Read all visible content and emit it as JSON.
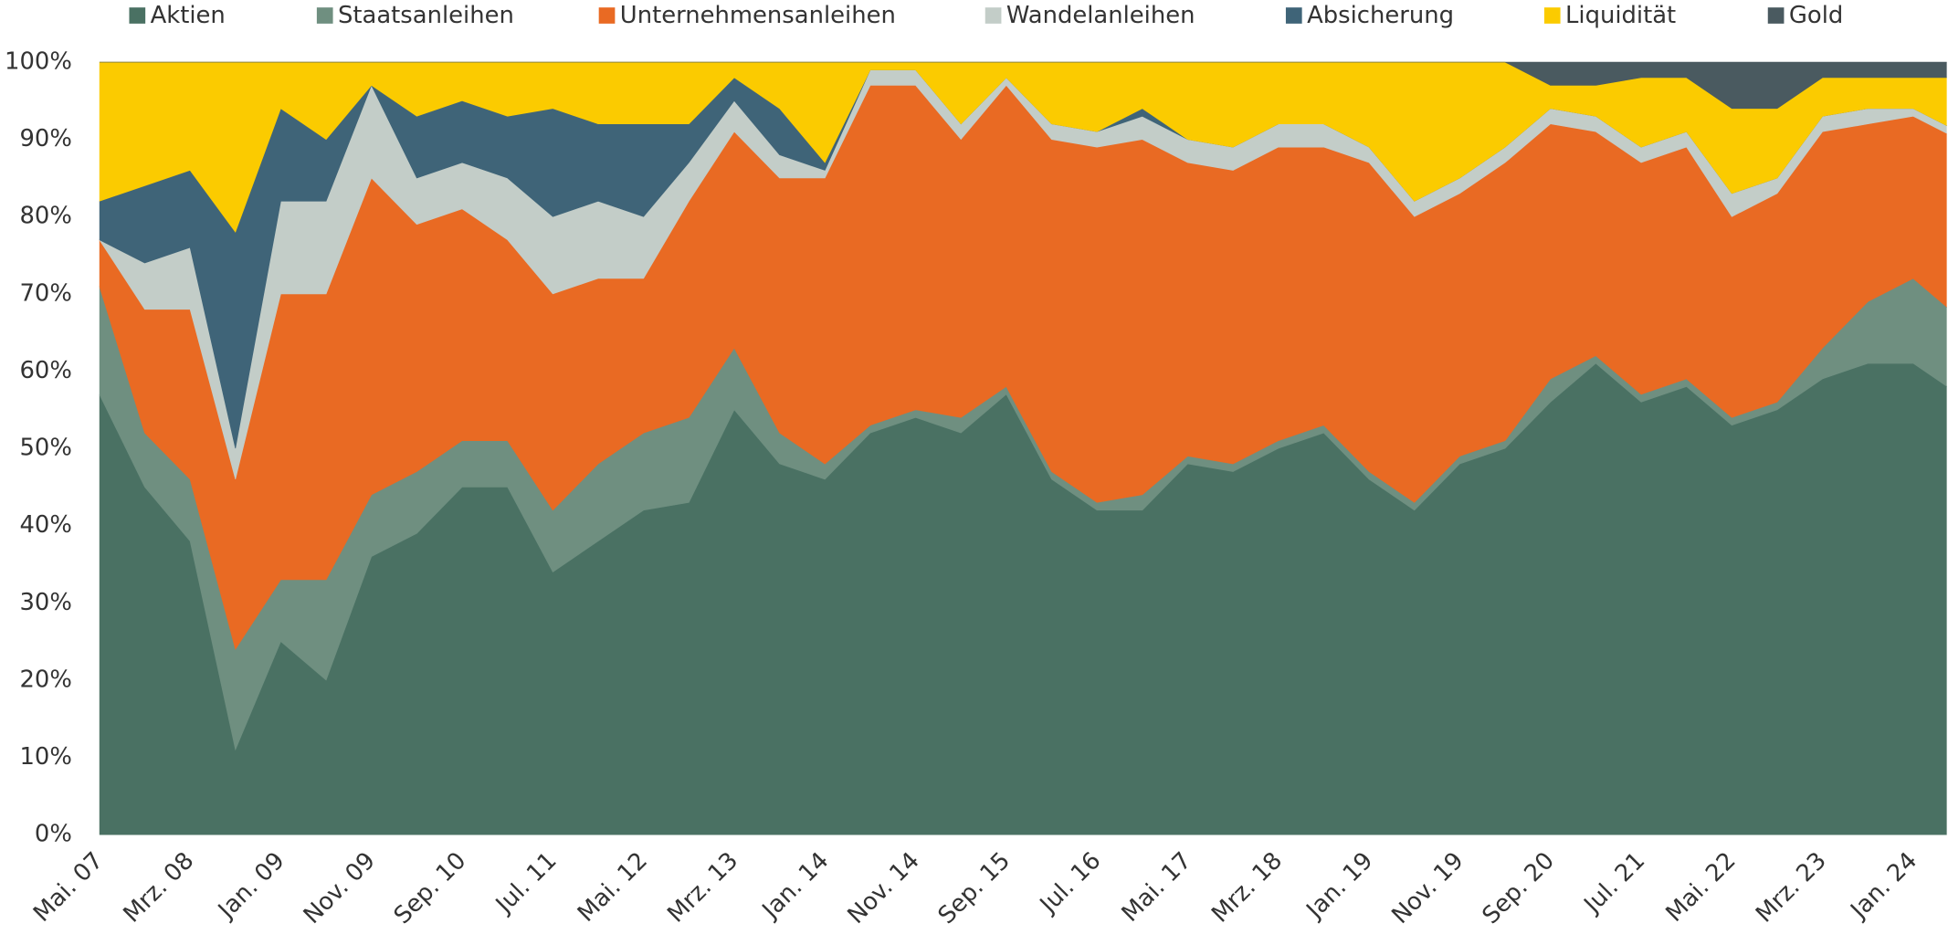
{
  "chart_data": {
    "type": "stacked_area_percent",
    "categories": [
      "Mai. 07",
      null,
      "Mrz. 08",
      null,
      "Jan. 09",
      null,
      "Nov. 09",
      null,
      "Sep. 10",
      null,
      "Jul. 11",
      null,
      "Mai. 12",
      null,
      "Mrz. 13",
      null,
      "Jan. 14",
      null,
      "Nov. 14",
      null,
      "Sep. 15",
      null,
      "Jul. 16",
      null,
      "Mai. 17",
      null,
      "Mrz. 18",
      null,
      "Jan. 19",
      null,
      "Nov. 19",
      null,
      "Sep. 20",
      null,
      "Jul. 21",
      null,
      "Mai. 22",
      null,
      "Mrz. 23",
      null,
      "Jan. 24",
      null
    ],
    "series": [
      {
        "name": "Aktien",
        "color": "#4a7163",
        "values": [
          57,
          45,
          38,
          11,
          25,
          20,
          36,
          39,
          45,
          45,
          34,
          38,
          42,
          43,
          55,
          48,
          46,
          52,
          54,
          52,
          57,
          46,
          42,
          42,
          48,
          47,
          50,
          52,
          46,
          42,
          48,
          50,
          56,
          61,
          56,
          58,
          53,
          55,
          59,
          61,
          61,
          57
        ]
      },
      {
        "name": "Staatsanleihen",
        "color": "#6f8f80",
        "values": [
          14,
          7,
          8,
          13,
          8,
          13,
          8,
          8,
          6,
          6,
          8,
          10,
          10,
          11,
          8,
          4,
          2,
          1,
          1,
          2,
          1,
          1,
          1,
          2,
          1,
          1,
          1,
          1,
          1,
          1,
          1,
          1,
          3,
          1,
          1,
          1,
          1,
          1,
          4,
          8,
          11,
          10
        ]
      },
      {
        "name": "Unternehmensanleihen",
        "color": "#e96a23",
        "values": [
          6,
          16,
          22,
          22,
          37,
          37,
          41,
          32,
          30,
          26,
          28,
          24,
          20,
          28,
          28,
          33,
          37,
          44,
          42,
          36,
          39,
          43,
          46,
          46,
          38,
          38,
          38,
          36,
          40,
          37,
          34,
          36,
          33,
          29,
          30,
          30,
          26,
          27,
          28,
          23,
          21,
          23
        ]
      },
      {
        "name": "Wandelanleihen",
        "color": "#c3cdc8",
        "values": [
          0,
          6,
          8,
          4,
          12,
          12,
          12,
          6,
          6,
          8,
          10,
          10,
          8,
          5,
          4,
          3,
          1,
          2,
          2,
          2,
          1,
          2,
          2,
          3,
          3,
          3,
          3,
          3,
          2,
          2,
          2,
          2,
          2,
          2,
          2,
          2,
          3,
          2,
          2,
          2,
          1,
          1
        ]
      },
      {
        "name": "Absicherung",
        "color": "#3f6478",
        "values": [
          5,
          10,
          10,
          28,
          12,
          8,
          0,
          8,
          8,
          8,
          14,
          10,
          12,
          5,
          3,
          6,
          1,
          0,
          0,
          0,
          0,
          0,
          0,
          1,
          0,
          0,
          0,
          0,
          0,
          0,
          0,
          0,
          0,
          0,
          0,
          0,
          0,
          0,
          0,
          0,
          0,
          0
        ]
      },
      {
        "name": "Liquidität",
        "color": "#fbcb00",
        "values": [
          18,
          16,
          14,
          22,
          6,
          10,
          3,
          7,
          5,
          7,
          6,
          8,
          8,
          8,
          2,
          6,
          13,
          1,
          1,
          8,
          2,
          8,
          9,
          6,
          10,
          11,
          8,
          8,
          11,
          18,
          15,
          11,
          3,
          4,
          9,
          7,
          11,
          9,
          5,
          4,
          4,
          7
        ]
      },
      {
        "name": "Gold",
        "color": "#4a5a60",
        "values": [
          0,
          0,
          0,
          0,
          0,
          0,
          0,
          0,
          0,
          0,
          0,
          0,
          0,
          0,
          0,
          0,
          0,
          0,
          0,
          0,
          0,
          0,
          0,
          0,
          0,
          0,
          0,
          0,
          0,
          0,
          0,
          0,
          3,
          3,
          2,
          2,
          6,
          6,
          2,
          2,
          2,
          2
        ]
      }
    ],
    "ylim": [
      0,
      100
    ],
    "yticks": [
      {
        "value": 0,
        "label": "0%"
      },
      {
        "value": 10,
        "label": "10%"
      },
      {
        "value": 20,
        "label": "20%"
      },
      {
        "value": 30,
        "label": "30%"
      },
      {
        "value": 40,
        "label": "40%"
      },
      {
        "value": 50,
        "label": "50%"
      },
      {
        "value": 60,
        "label": "60%"
      },
      {
        "value": 70,
        "label": "70%"
      },
      {
        "value": 80,
        "label": "80%"
      },
      {
        "value": 90,
        "label": "90%"
      },
      {
        "value": 100,
        "label": "100%"
      }
    ],
    "legend": "top"
  }
}
